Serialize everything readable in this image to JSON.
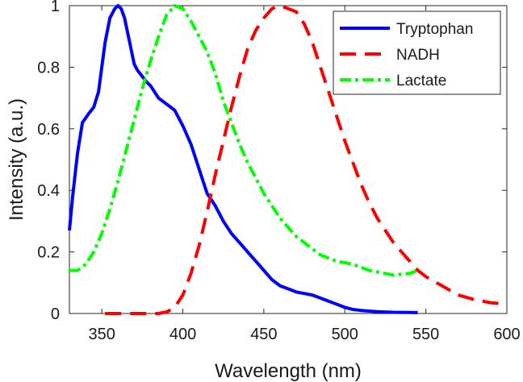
{
  "chart_data": {
    "type": "line",
    "title": "",
    "xlabel": "Wavelength (nm)",
    "ylabel": "Intensity (a.u.)",
    "xlim": [
      330,
      600
    ],
    "ylim": [
      0,
      1
    ],
    "xticks": [
      350,
      400,
      450,
      500,
      550,
      600
    ],
    "xtick_labels": [
      "350",
      "400",
      "450",
      "500",
      "550",
      "600"
    ],
    "yticks": [
      0,
      0.2,
      0.4,
      0.6,
      0.8,
      1
    ],
    "ytick_labels": [
      "0",
      "0.2",
      "0.4",
      "0.6",
      "0.8",
      "1"
    ],
    "grid": false,
    "legend_position": "top-right",
    "series": [
      {
        "name": "Tryptophan",
        "color": "#0000ff",
        "style": "solid",
        "x": [
          330,
          332,
          335,
          338,
          342,
          345,
          348,
          350,
          352,
          355,
          358,
          360,
          362,
          364,
          366,
          368,
          370,
          372,
          375,
          378,
          380,
          385,
          390,
          395,
          400,
          405,
          410,
          415,
          420,
          425,
          430,
          435,
          440,
          445,
          450,
          455,
          460,
          465,
          470,
          475,
          480,
          485,
          490,
          495,
          500,
          505,
          510,
          520,
          530,
          545
        ],
        "y": [
          0.27,
          0.38,
          0.52,
          0.62,
          0.65,
          0.67,
          0.72,
          0.8,
          0.88,
          0.96,
          0.99,
          1.0,
          0.99,
          0.96,
          0.91,
          0.86,
          0.81,
          0.79,
          0.77,
          0.75,
          0.74,
          0.7,
          0.68,
          0.66,
          0.61,
          0.55,
          0.47,
          0.39,
          0.35,
          0.3,
          0.26,
          0.23,
          0.2,
          0.17,
          0.14,
          0.11,
          0.09,
          0.08,
          0.07,
          0.065,
          0.06,
          0.05,
          0.04,
          0.03,
          0.02,
          0.013,
          0.01,
          0.006,
          0.004,
          0.003
        ]
      },
      {
        "name": "NADH",
        "color": "#ff0000",
        "style": "dashed",
        "x": [
          352,
          360,
          370,
          380,
          385,
          390,
          395,
          400,
          405,
          410,
          415,
          420,
          425,
          430,
          435,
          440,
          445,
          450,
          455,
          460,
          465,
          470,
          475,
          480,
          485,
          490,
          495,
          500,
          505,
          510,
          515,
          520,
          525,
          530,
          535,
          540,
          545,
          550,
          560,
          570,
          580,
          590,
          600
        ],
        "y": [
          0.0,
          0.0,
          0.0,
          0.0,
          0.0,
          0.005,
          0.02,
          0.06,
          0.13,
          0.22,
          0.33,
          0.45,
          0.56,
          0.67,
          0.77,
          0.86,
          0.92,
          0.96,
          0.99,
          1.0,
          0.99,
          0.98,
          0.94,
          0.88,
          0.8,
          0.72,
          0.64,
          0.56,
          0.49,
          0.42,
          0.36,
          0.31,
          0.27,
          0.23,
          0.2,
          0.17,
          0.14,
          0.12,
          0.09,
          0.06,
          0.045,
          0.035,
          0.03
        ]
      },
      {
        "name": "Lactate",
        "color": "#00ff00",
        "style": "dashdot",
        "x": [
          330,
          335,
          340,
          345,
          350,
          355,
          360,
          365,
          370,
          375,
          380,
          385,
          390,
          395,
          400,
          405,
          410,
          415,
          420,
          425,
          430,
          435,
          440,
          445,
          450,
          455,
          460,
          465,
          470,
          475,
          480,
          485,
          490,
          495,
          500,
          505,
          510,
          515,
          520,
          525,
          530,
          535,
          540,
          545
        ],
        "y": [
          0.14,
          0.14,
          0.16,
          0.2,
          0.26,
          0.34,
          0.43,
          0.53,
          0.63,
          0.73,
          0.82,
          0.9,
          0.97,
          1.0,
          0.99,
          0.95,
          0.9,
          0.85,
          0.78,
          0.69,
          0.62,
          0.55,
          0.49,
          0.44,
          0.39,
          0.35,
          0.31,
          0.28,
          0.25,
          0.23,
          0.21,
          0.19,
          0.18,
          0.17,
          0.165,
          0.16,
          0.15,
          0.14,
          0.135,
          0.13,
          0.125,
          0.128,
          0.13,
          0.14
        ]
      }
    ]
  }
}
